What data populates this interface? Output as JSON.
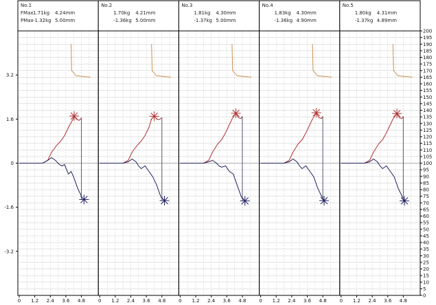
{
  "chart_data": {
    "type": "line",
    "grid": true,
    "left_axis": {
      "ticks": [
        -3.2,
        -1.6,
        0,
        1.6,
        3.2
      ],
      "range": [
        -4.8,
        4.8
      ]
    },
    "right_axis": {
      "ticks": [
        0,
        5,
        10,
        15,
        20,
        25,
        30,
        35,
        40,
        45,
        50,
        55,
        60,
        65,
        70,
        75,
        80,
        85,
        90,
        95,
        100,
        105,
        110,
        115,
        120,
        125,
        130,
        135,
        140,
        145,
        150,
        155,
        160,
        165,
        170,
        175,
        180,
        185,
        190,
        195,
        200
      ],
      "range": [
        0,
        200
      ]
    },
    "x_ticks": [
      "0",
      "1.2",
      "2.4",
      "3.6",
      "4.8"
    ],
    "x_range": [
      0,
      6
    ],
    "panels": [
      {
        "title": "No.1",
        "row1": [
          "FMax",
          "1.71kg",
          "4.24mm"
        ],
        "row2": [
          "PMax",
          "-1.32kg",
          "5.00mm"
        ],
        "force_curve": [
          [
            0,
            0
          ],
          [
            1,
            0
          ],
          [
            1.8,
            0
          ],
          [
            2.2,
            0.1
          ],
          [
            2.5,
            0.4
          ],
          [
            2.9,
            0.65
          ],
          [
            3.2,
            0.8
          ],
          [
            3.5,
            1.0
          ],
          [
            3.8,
            1.3
          ],
          [
            4.1,
            1.55
          ],
          [
            4.24,
            1.71
          ],
          [
            4.4,
            1.6
          ],
          [
            4.6,
            1.55
          ],
          [
            4.75,
            1.6
          ],
          [
            4.8,
            1.65
          ]
        ],
        "pressure_curve": [
          [
            0,
            0
          ],
          [
            1,
            0
          ],
          [
            1.8,
            0
          ],
          [
            2.2,
            0.1
          ],
          [
            2.5,
            0.2
          ],
          [
            2.8,
            0.1
          ],
          [
            3.1,
            -0.05
          ],
          [
            3.3,
            -0.1
          ],
          [
            3.5,
            -0.05
          ],
          [
            3.8,
            -0.4
          ],
          [
            4.0,
            -0.3
          ],
          [
            4.2,
            -0.5
          ],
          [
            4.5,
            -0.9
          ],
          [
            4.7,
            -1.1
          ],
          [
            4.85,
            -1.25
          ],
          [
            5.0,
            -1.32
          ]
        ],
        "drop_x": 4.8,
        "fmax_point": [
          4.24,
          1.71
        ],
        "pmax_point": [
          5.0,
          -1.32
        ],
        "temp_curve": [
          [
            4.0,
            190
          ],
          [
            4.05,
            170
          ],
          [
            4.4,
            166
          ],
          [
            5.5,
            165
          ]
        ]
      },
      {
        "title": "No.2",
        "row1": [
          "",
          "1.70kg",
          "4.21mm"
        ],
        "row2": [
          "",
          "-1.36kg",
          "5.00mm"
        ],
        "force_curve": [
          [
            0,
            0
          ],
          [
            1,
            0
          ],
          [
            1.8,
            0
          ],
          [
            2.2,
            0.1
          ],
          [
            2.5,
            0.4
          ],
          [
            2.9,
            0.65
          ],
          [
            3.2,
            0.8
          ],
          [
            3.5,
            1.0
          ],
          [
            3.8,
            1.3
          ],
          [
            4.0,
            1.6
          ],
          [
            4.21,
            1.7
          ],
          [
            4.4,
            1.6
          ],
          [
            4.6,
            1.58
          ],
          [
            4.8,
            1.65
          ]
        ],
        "pressure_curve": [
          [
            0,
            0
          ],
          [
            1,
            0
          ],
          [
            1.8,
            0
          ],
          [
            2.2,
            0.05
          ],
          [
            2.5,
            0.15
          ],
          [
            2.8,
            0.05
          ],
          [
            3.0,
            -0.1
          ],
          [
            3.2,
            -0.2
          ],
          [
            3.5,
            -0.1
          ],
          [
            3.8,
            -0.3
          ],
          [
            4.1,
            -0.5
          ],
          [
            4.4,
            -0.8
          ],
          [
            4.7,
            -1.2
          ],
          [
            5.0,
            -1.36
          ]
        ],
        "drop_x": 4.8,
        "fmax_point": [
          4.21,
          1.7
        ],
        "pmax_point": [
          5.0,
          -1.36
        ],
        "temp_curve": [
          [
            4.0,
            190
          ],
          [
            4.05,
            170
          ],
          [
            4.4,
            166
          ],
          [
            5.5,
            165
          ]
        ]
      },
      {
        "title": "No.3",
        "row1": [
          "",
          "1.81kg",
          "4.30mm"
        ],
        "row2": [
          "",
          "-1.37kg",
          "5.00mm"
        ],
        "force_curve": [
          [
            0,
            0
          ],
          [
            1,
            0
          ],
          [
            1.8,
            0
          ],
          [
            2.2,
            0.1
          ],
          [
            2.5,
            0.4
          ],
          [
            2.9,
            0.7
          ],
          [
            3.2,
            0.85
          ],
          [
            3.5,
            1.1
          ],
          [
            3.8,
            1.4
          ],
          [
            4.0,
            1.6
          ],
          [
            4.3,
            1.81
          ],
          [
            4.5,
            1.65
          ],
          [
            4.7,
            1.62
          ],
          [
            4.8,
            1.7
          ]
        ],
        "pressure_curve": [
          [
            0,
            0
          ],
          [
            1,
            0
          ],
          [
            1.8,
            0
          ],
          [
            2.2,
            0.05
          ],
          [
            2.5,
            0.1
          ],
          [
            2.8,
            0.0
          ],
          [
            3.0,
            -0.1
          ],
          [
            3.2,
            -0.15
          ],
          [
            3.5,
            -0.1
          ],
          [
            3.8,
            -0.3
          ],
          [
            4.1,
            -0.4
          ],
          [
            4.4,
            -0.8
          ],
          [
            4.7,
            -1.2
          ],
          [
            5.0,
            -1.37
          ]
        ],
        "drop_x": 4.8,
        "fmax_point": [
          4.3,
          1.81
        ],
        "pmax_point": [
          5.0,
          -1.37
        ],
        "temp_curve": [
          [
            4.0,
            190
          ],
          [
            4.05,
            170
          ],
          [
            4.4,
            166
          ],
          [
            5.5,
            165
          ]
        ]
      },
      {
        "title": "No.4",
        "row1": [
          "",
          "1.83kg",
          "4.30mm"
        ],
        "row2": [
          "",
          "-1.36kg",
          "4.90mm"
        ],
        "force_curve": [
          [
            0,
            0
          ],
          [
            1,
            0
          ],
          [
            1.8,
            0
          ],
          [
            2.2,
            0.1
          ],
          [
            2.5,
            0.4
          ],
          [
            2.9,
            0.7
          ],
          [
            3.2,
            0.85
          ],
          [
            3.5,
            1.1
          ],
          [
            3.8,
            1.4
          ],
          [
            4.0,
            1.6
          ],
          [
            4.3,
            1.83
          ],
          [
            4.5,
            1.65
          ],
          [
            4.7,
            1.62
          ],
          [
            4.8,
            1.7
          ]
        ],
        "pressure_curve": [
          [
            0,
            0
          ],
          [
            1,
            0
          ],
          [
            1.8,
            0
          ],
          [
            2.2,
            0.05
          ],
          [
            2.5,
            0.15
          ],
          [
            2.8,
            0.05
          ],
          [
            3.0,
            -0.1
          ],
          [
            3.2,
            -0.2
          ],
          [
            3.5,
            -0.1
          ],
          [
            3.8,
            -0.3
          ],
          [
            4.1,
            -0.5
          ],
          [
            4.4,
            -0.9
          ],
          [
            4.7,
            -1.2
          ],
          [
            4.9,
            -1.36
          ]
        ],
        "drop_x": 4.8,
        "fmax_point": [
          4.3,
          1.83
        ],
        "pmax_point": [
          4.9,
          -1.36
        ],
        "temp_curve": [
          [
            4.0,
            190
          ],
          [
            4.05,
            170
          ],
          [
            4.4,
            166
          ],
          [
            5.5,
            165
          ]
        ]
      },
      {
        "title": "No.5",
        "row1": [
          "",
          "1.80kg",
          "4.31mm"
        ],
        "row2": [
          "",
          "-1.37kg",
          "4.89mm"
        ],
        "force_curve": [
          [
            0,
            0
          ],
          [
            1,
            0
          ],
          [
            1.8,
            0
          ],
          [
            2.2,
            0.1
          ],
          [
            2.5,
            0.4
          ],
          [
            2.9,
            0.7
          ],
          [
            3.2,
            0.85
          ],
          [
            3.5,
            1.1
          ],
          [
            3.8,
            1.4
          ],
          [
            4.0,
            1.6
          ],
          [
            4.31,
            1.8
          ],
          [
            4.5,
            1.65
          ],
          [
            4.7,
            1.62
          ],
          [
            4.8,
            1.7
          ]
        ],
        "pressure_curve": [
          [
            0,
            0
          ],
          [
            1,
            0
          ],
          [
            1.8,
            0
          ],
          [
            2.2,
            0.05
          ],
          [
            2.5,
            0.15
          ],
          [
            2.8,
            0.05
          ],
          [
            3.0,
            -0.1
          ],
          [
            3.2,
            -0.2
          ],
          [
            3.5,
            -0.1
          ],
          [
            3.8,
            -0.3
          ],
          [
            4.1,
            -0.5
          ],
          [
            4.4,
            -0.9
          ],
          [
            4.7,
            -1.2
          ],
          [
            4.89,
            -1.37
          ]
        ],
        "drop_x": 4.8,
        "fmax_point": [
          4.31,
          1.8
        ],
        "pmax_point": [
          4.89,
          -1.37
        ],
        "temp_curve": [
          [
            4.0,
            190
          ],
          [
            4.05,
            170
          ],
          [
            4.4,
            166
          ],
          [
            5.5,
            165
          ]
        ]
      }
    ],
    "colors": {
      "force": "#b03030",
      "pressure": "#202060",
      "temperature": "#c89050",
      "drop": "#555566",
      "grid": "#c8c8c8",
      "frame": "#000000"
    }
  }
}
